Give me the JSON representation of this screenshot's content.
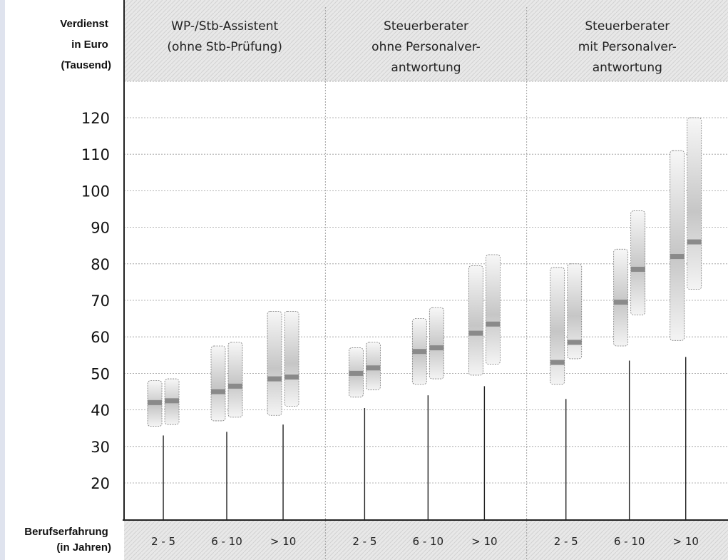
{
  "chart_data": {
    "type": "range-bar",
    "ylabel": "Verdienst in Euro (Tausend)",
    "ylabel_lines": [
      "Verdienst",
      "in Euro",
      "(Tausend)"
    ],
    "xlabel": "Berufserfahrung (in Jahren)",
    "xlabel_lines": [
      "Berufserfahrung",
      "(in Jahren)"
    ],
    "yticks": [
      20,
      30,
      40,
      50,
      60,
      70,
      80,
      90,
      100,
      110,
      120
    ],
    "grid": true,
    "panels": [
      {
        "title_lines": [
          "WP-/Stb-Assistent",
          "(ohne Stb-Prüfung)"
        ],
        "categories": [
          "2 - 5",
          "6 - 10",
          "> 10"
        ],
        "groups": [
          [
            {
              "min": 35.5,
              "max": 48,
              "median": 42
            },
            {
              "min": 36,
              "max": 48.5,
              "median": 42.5
            }
          ],
          [
            {
              "min": 37,
              "max": 57.5,
              "median": 45
            },
            {
              "min": 38,
              "max": 58.5,
              "median": 46.5
            }
          ],
          [
            {
              "min": 38.5,
              "max": 67,
              "median": 48.5
            },
            {
              "min": 41,
              "max": 67,
              "median": 49
            }
          ]
        ],
        "stems": [
          33,
          34,
          36
        ]
      },
      {
        "title_lines": [
          "Steuerberater",
          "ohne Personalver-",
          "antwortung"
        ],
        "categories": [
          "2 - 5",
          "6 - 10",
          "> 10"
        ],
        "groups": [
          [
            {
              "min": 43.5,
              "max": 57,
              "median": 50
            },
            {
              "min": 45.5,
              "max": 58.5,
              "median": 51.5
            }
          ],
          [
            {
              "min": 47,
              "max": 65,
              "median": 56
            },
            {
              "min": 48.5,
              "max": 68,
              "median": 57
            }
          ],
          [
            {
              "min": 49.5,
              "max": 79.5,
              "median": 61
            },
            {
              "min": 52.5,
              "max": 82.5,
              "median": 63.5
            }
          ]
        ],
        "stems": [
          40.5,
          44,
          46.5
        ]
      },
      {
        "title_lines": [
          "Steuerberater",
          "mit Personalver-",
          "antwortung"
        ],
        "categories": [
          "2 - 5",
          "6 - 10",
          "> 10"
        ],
        "groups": [
          [
            {
              "min": 47,
              "max": 79,
              "median": 53
            },
            {
              "min": 54,
              "max": 80,
              "median": 58.5
            }
          ],
          [
            {
              "min": 57.5,
              "max": 84,
              "median": 69.5
            },
            {
              "min": 66,
              "max": 94.5,
              "median": 78.5
            }
          ],
          [
            {
              "min": 59,
              "max": 111,
              "median": 82
            },
            {
              "min": 73,
              "max": 120,
              "median": 86
            }
          ]
        ],
        "stems": [
          43,
          53.5,
          54.5
        ]
      }
    ]
  },
  "colors": {
    "header_bg": "#e4e4e4",
    "grid": "#9a9a9a",
    "box_fill_outer": "#f4f4f4",
    "box_fill_inner": "#bdbdbd",
    "median": "#8a8a8a",
    "axis": "#222222",
    "left_bar": "#dfe3ee"
  }
}
